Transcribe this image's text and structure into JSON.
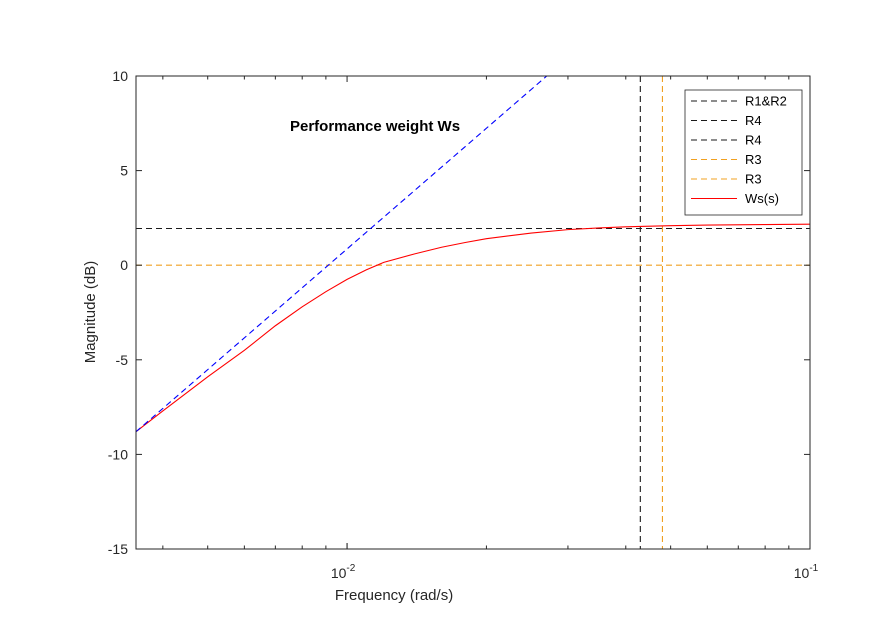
{
  "chart_data": {
    "type": "line",
    "title": "",
    "annotation": "Performance weight Ws",
    "xlabel": "Frequency  (rad/s)",
    "ylabel": "Magnitude (dB)",
    "xscale": "log",
    "xlim": [
      0.0035,
      0.1
    ],
    "ylim": [
      -15,
      10
    ],
    "x_ticks": [
      {
        "value": 0.01,
        "base": "10",
        "exp": "-2"
      },
      {
        "value": 0.1,
        "base": "10",
        "exp": "-1"
      }
    ],
    "y_ticks": [
      {
        "value": 10,
        "label": "10"
      },
      {
        "value": 5,
        "label": "5"
      },
      {
        "value": 0,
        "label": "0"
      },
      {
        "value": -5,
        "label": "-5"
      },
      {
        "value": -10,
        "label": "-10"
      },
      {
        "value": -15,
        "label": "-15"
      }
    ],
    "legend_position": "top-right",
    "grid": false,
    "series": [
      {
        "legend": "R1&R2",
        "color": "#1a1a1a",
        "dash": "dashed",
        "kind": "hline",
        "y": 1.94
      },
      {
        "legend": "R4",
        "color": "#1a1a1a",
        "dash": "dashed",
        "kind": "vline",
        "x": 0.043
      },
      {
        "legend": "R4",
        "color": "#1a1a1a",
        "dash": "dashed",
        "kind": "hline",
        "y": 1.94
      },
      {
        "legend": "R3",
        "color": "#f0a020",
        "dash": "dashed",
        "kind": "vline",
        "x": 0.048
      },
      {
        "legend": "R3",
        "color": "#f0a020",
        "dash": "dashed",
        "kind": "hline",
        "y": 0
      },
      {
        "legend": "Ws(s)",
        "color": "#ff0000",
        "dash": "solid",
        "kind": "curve",
        "x": [
          0.0035,
          0.004,
          0.005,
          0.006,
          0.007,
          0.008,
          0.009,
          0.01,
          0.011,
          0.012,
          0.014,
          0.016,
          0.018,
          0.02,
          0.025,
          0.03,
          0.035,
          0.04,
          0.05,
          0.06,
          0.08,
          0.1
        ],
        "y": [
          -8.8,
          -7.7,
          -5.9,
          -4.5,
          -3.2,
          -2.2,
          -1.4,
          -0.75,
          -0.25,
          0.15,
          0.6,
          0.95,
          1.2,
          1.4,
          1.7,
          1.88,
          1.97,
          2.03,
          2.09,
          2.12,
          2.15,
          2.17
        ]
      },
      {
        "legend": "",
        "color": "#0000ff",
        "dash": "dashed",
        "kind": "line",
        "x": [
          0.0035,
          0.027
        ],
        "y": [
          -8.8,
          10
        ]
      }
    ]
  }
}
